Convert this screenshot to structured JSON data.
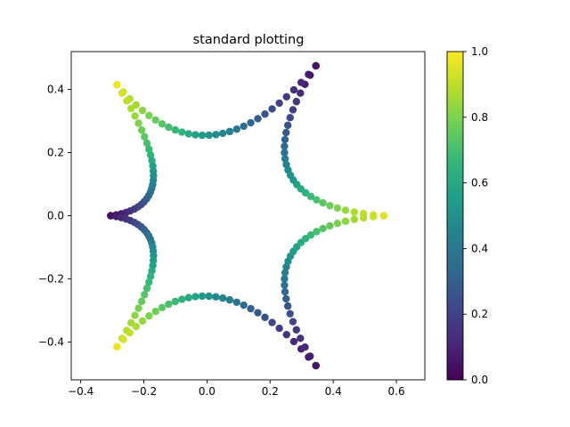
{
  "chart_data": {
    "type": "scatter",
    "title": "standard plotting",
    "xlabel": "",
    "ylabel": "",
    "xlim": [
      -0.43,
      0.69
    ],
    "ylim": [
      -0.52,
      0.52
    ],
    "x_ticks": [
      -0.4,
      -0.2,
      0.0,
      0.2,
      0.4,
      0.6
    ],
    "x_tick_labels": [
      "−0.4",
      "−0.2",
      "0.0",
      "0.2",
      "0.4",
      "0.6"
    ],
    "y_ticks": [
      -0.4,
      -0.2,
      0.0,
      0.2,
      0.4
    ],
    "y_tick_labels": [
      "−0.4",
      "−0.2",
      "0.0",
      "0.2",
      "0.4"
    ],
    "grid": false,
    "colormap": "viridis",
    "colorbar": {
      "range": [
        0.0,
        1.0
      ],
      "ticks": [
        0.0,
        0.2,
        0.4,
        0.6,
        0.8,
        1.0
      ],
      "tick_labels": [
        "0.0",
        "0.2",
        "0.4",
        "0.6",
        "0.8",
        "1.0"
      ]
    },
    "curve": {
      "shape": "hypocycloid-like six-cusped closed curve (rotated copy of a curve), color encodes parameter value along each arc",
      "cusps": [
        [
          0.56,
          0.0
        ],
        [
          0.345,
          0.475
        ],
        [
          -0.285,
          0.415
        ],
        [
          -0.305,
          0.0
        ],
        [
          -0.285,
          -0.415
        ],
        [
          0.345,
          -0.475
        ]
      ],
      "points_per_arc": 30
    }
  },
  "colors": {
    "viridis": [
      "#440154",
      "#482878",
      "#3e4989",
      "#31688e",
      "#26828e",
      "#1f9e89",
      "#35b779",
      "#6ece58",
      "#b5de2b",
      "#fde725"
    ]
  }
}
